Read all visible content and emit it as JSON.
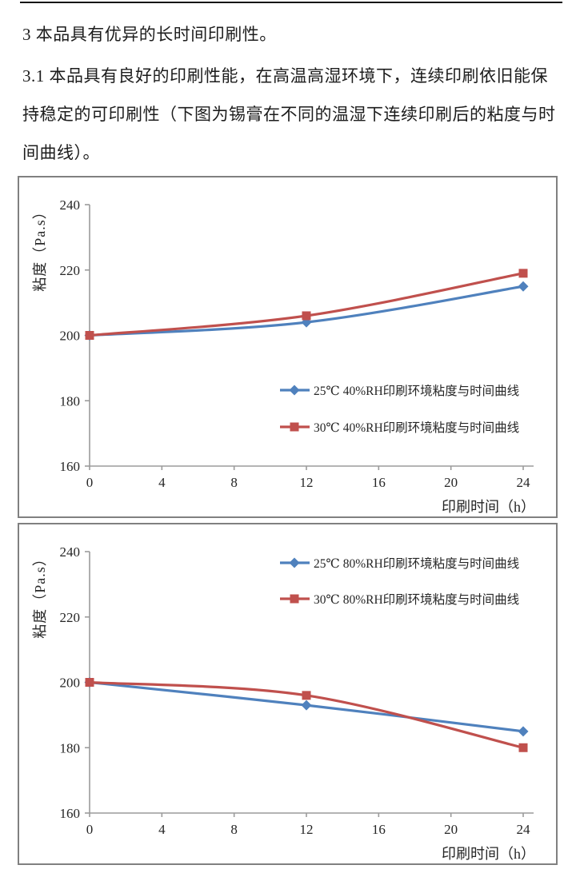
{
  "document": {
    "heading": "3 本品具有优异的长时间印刷性。",
    "paragraph_lines": [
      "3.1 本品具有良好的印刷性能，在高温高湿环境下，连续印刷依旧能保",
      "持稳定的可印刷性（下图为锡膏在不同的温湿下连续印刷后的粘度与时",
      "间曲线）。"
    ]
  },
  "colors": {
    "series_blue": "#4F81BD",
    "series_red": "#C0504D",
    "axis_line": "#9b9b9b",
    "chart_border": "#808080",
    "tick_text": "#262626"
  },
  "chart_data": [
    {
      "type": "line",
      "title": "",
      "xlabel": "印刷时间（h）",
      "ylabel": "粘度（Pa.s）",
      "x": [
        0,
        12,
        24
      ],
      "xticks": [
        0,
        4,
        8,
        12,
        16,
        20,
        24
      ],
      "yticks": [
        160,
        180,
        200,
        220,
        240
      ],
      "xlim": [
        0,
        24
      ],
      "ylim": [
        160,
        240
      ],
      "grid": false,
      "smooth": true,
      "legend_position": "center-right-inside",
      "series": [
        {
          "name": "25℃ 40%RH印刷环境粘度与时间曲线",
          "color": "#4F81BD",
          "marker": "diamond",
          "values": [
            200,
            204,
            215
          ]
        },
        {
          "name": "30℃ 40%RH印刷环境粘度与时间曲线",
          "color": "#C0504D",
          "marker": "square",
          "values": [
            200,
            206,
            219
          ]
        }
      ]
    },
    {
      "type": "line",
      "title": "",
      "xlabel": "印刷时间（h）",
      "ylabel": "粘度（Pa.s）",
      "x": [
        0,
        12,
        24
      ],
      "xticks": [
        0,
        4,
        8,
        12,
        16,
        20,
        24
      ],
      "yticks": [
        160,
        180,
        200,
        220,
        240
      ],
      "xlim": [
        0,
        24
      ],
      "ylim": [
        160,
        240
      ],
      "grid": false,
      "smooth": true,
      "legend_position": "top-right-inside",
      "series": [
        {
          "name": "25℃ 80%RH印刷环境粘度与时间曲线",
          "color": "#4F81BD",
          "marker": "diamond",
          "values": [
            200,
            193,
            185
          ]
        },
        {
          "name": "30℃ 80%RH印刷环境粘度与时间曲线",
          "color": "#C0504D",
          "marker": "square",
          "values": [
            200,
            196,
            180
          ]
        }
      ]
    }
  ]
}
